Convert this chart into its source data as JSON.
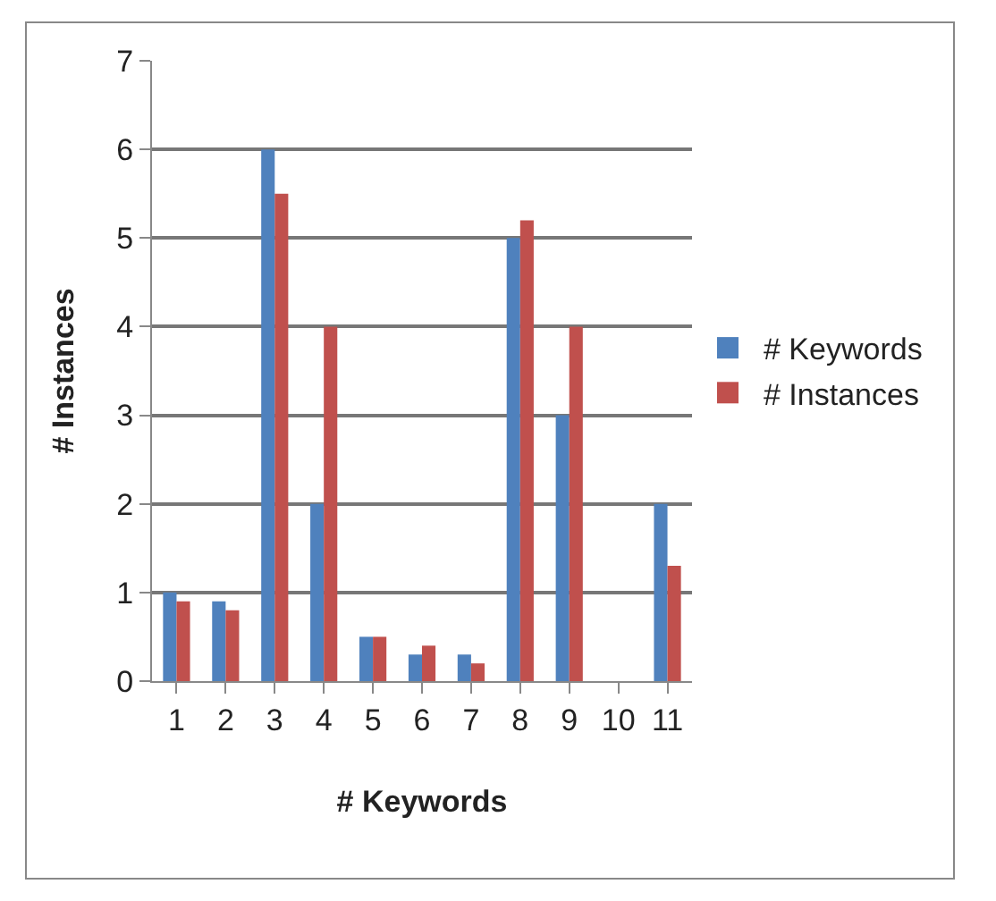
{
  "chart_data": {
    "type": "bar",
    "xlabel": "# Keywords",
    "ylabel": "# Instances",
    "categories": [
      "1",
      "2",
      "3",
      "4",
      "5",
      "6",
      "7",
      "8",
      "9",
      "10",
      "11"
    ],
    "series": [
      {
        "name": "# Keywords",
        "color": "#4f81bd",
        "values": [
          1,
          0.9,
          6,
          2,
          0.5,
          0.3,
          0.3,
          5,
          3,
          null,
          2
        ]
      },
      {
        "name": "# Instances",
        "color": "#c0504d",
        "values": [
          0.9,
          0.8,
          5.5,
          4,
          0.5,
          0.4,
          0.2,
          5.2,
          4,
          null,
          1.3
        ]
      }
    ],
    "ylim": [
      0,
      7
    ],
    "yticks": [
      0,
      1,
      2,
      3,
      4,
      5,
      6,
      7
    ],
    "grid": "y",
    "legend": "right"
  }
}
